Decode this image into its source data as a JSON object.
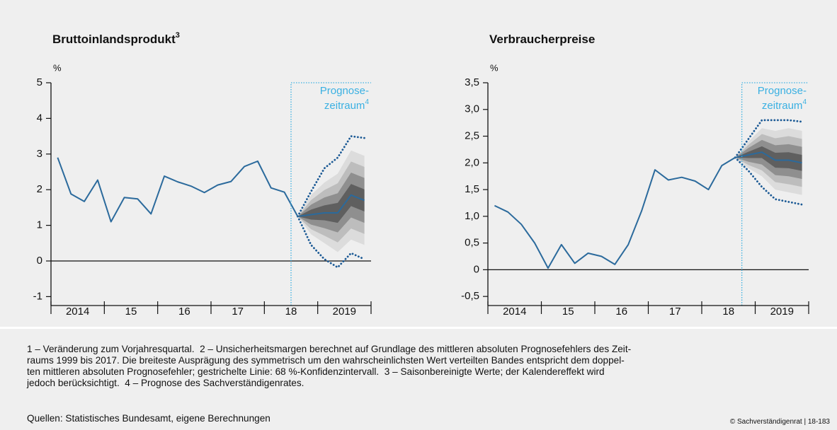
{
  "chart_data": [
    {
      "type": "line",
      "title": "Bruttoinlandsprodukt",
      "title_note": "3",
      "ylabel": "%",
      "xlim": [
        2014,
        2020
      ],
      "xticks": [
        2014,
        2015,
        2016,
        2017,
        2018,
        2019,
        2020
      ],
      "xlabels": [
        {
          "value": 2014.5,
          "label": "2014"
        },
        {
          "value": 2015.5,
          "label": "15"
        },
        {
          "value": 2016.5,
          "label": "16"
        },
        {
          "value": 2017.5,
          "label": "17"
        },
        {
          "value": 2018.5,
          "label": "18"
        },
        {
          "value": 2019.5,
          "label": "2019"
        }
      ],
      "ylim": [
        -1.25,
        5
      ],
      "yticks": [
        5,
        4,
        3,
        2,
        1,
        0,
        -1
      ],
      "x": [
        2014.125,
        2014.375,
        2014.625,
        2014.875,
        2015.125,
        2015.375,
        2015.625,
        2015.875,
        2016.125,
        2016.375,
        2016.625,
        2016.875,
        2017.125,
        2017.375,
        2017.625,
        2017.875,
        2018.125,
        2018.375,
        2018.625,
        2018.875,
        2019.125,
        2019.375,
        2019.625,
        2019.875
      ],
      "series": [
        {
          "color": "#2b6a9c",
          "values": [
            2.9,
            1.88,
            1.67,
            2.27,
            1.1,
            1.78,
            1.74,
            1.32,
            2.38,
            2.22,
            2.1,
            1.92,
            2.13,
            2.23,
            2.65,
            2.8,
            2.05,
            1.93,
            1.25,
            1.3,
            1.35,
            1.35,
            1.85,
            1.7
          ]
        }
      ],
      "fan": {
        "x": [
          2018.625,
          2018.875,
          2019.125,
          2019.375,
          2019.625,
          2019.875
        ],
        "bands": [
          {
            "color": "#dcdcdc",
            "lower": [
              1.25,
              0.75,
              0.5,
              0.25,
              0.6,
              0.45
            ],
            "upper": [
              1.25,
              1.85,
              2.2,
              2.45,
              3.1,
              2.95
            ]
          },
          {
            "color": "#bdbdbd",
            "lower": [
              1.25,
              0.89,
              0.71,
              0.52,
              0.91,
              0.76
            ],
            "upper": [
              1.25,
              1.71,
              1.99,
              2.18,
              2.79,
              2.64
            ]
          },
          {
            "color": "#8f8f8f",
            "lower": [
              1.25,
              1.02,
              0.92,
              0.8,
              1.22,
              1.07
            ],
            "upper": [
              1.25,
              1.58,
              1.78,
              1.9,
              2.48,
              2.33
            ]
          },
          {
            "color": "#5f5f5f",
            "lower": [
              1.25,
              1.16,
              1.14,
              1.07,
              1.54,
              1.39
            ],
            "upper": [
              1.25,
              1.44,
              1.56,
              1.63,
              2.16,
              2.01
            ]
          }
        ],
        "interval": {
          "color": "#1c5a95",
          "lower": [
            1.25,
            0.45,
            0.05,
            -0.18,
            0.22,
            0.05
          ],
          "upper": [
            1.25,
            1.95,
            2.6,
            2.9,
            3.5,
            3.45
          ]
        }
      },
      "forecast_start": 2018.5,
      "forecast_label": [
        "Prognose-",
        "zeitraum"
      ],
      "forecast_note": "4",
      "forecast_color": "#3ab0e2"
    },
    {
      "type": "line",
      "title": "Verbraucherpreise",
      "ylabel": "%",
      "xlim": [
        2014,
        2020
      ],
      "xticks": [
        2014,
        2015,
        2016,
        2017,
        2018,
        2019,
        2020
      ],
      "xlabels": [
        {
          "value": 2014.5,
          "label": "2014"
        },
        {
          "value": 2015.5,
          "label": "15"
        },
        {
          "value": 2016.5,
          "label": "16"
        },
        {
          "value": 2017.5,
          "label": "17"
        },
        {
          "value": 2018.5,
          "label": "18"
        },
        {
          "value": 2019.5,
          "label": "2019"
        }
      ],
      "ylim": [
        -0.67,
        3.5
      ],
      "yticks": [
        {
          "value": 3.5,
          "label": "3,5"
        },
        {
          "value": 3,
          "label": "3,0"
        },
        {
          "value": 2.5,
          "label": "2,5"
        },
        {
          "value": 2,
          "label": "2,0"
        },
        {
          "value": 1.5,
          "label": "1,5"
        },
        {
          "value": 1,
          "label": "1,0"
        },
        {
          "value": 0.5,
          "label": "0,5"
        },
        0,
        {
          "value": -0.5,
          "label": "-0,5"
        }
      ],
      "x": [
        2014.125,
        2014.375,
        2014.625,
        2014.875,
        2015.125,
        2015.375,
        2015.625,
        2015.875,
        2016.125,
        2016.375,
        2016.625,
        2016.875,
        2017.125,
        2017.375,
        2017.625,
        2017.875,
        2018.125,
        2018.375,
        2018.625,
        2018.875,
        2019.125,
        2019.375,
        2019.625,
        2019.875
      ],
      "series": [
        {
          "color": "#2b6a9c",
          "values": [
            1.2,
            1.08,
            0.85,
            0.5,
            0.03,
            0.47,
            0.12,
            0.31,
            0.25,
            0.1,
            0.47,
            1.1,
            1.87,
            1.68,
            1.73,
            1.66,
            1.5,
            1.95,
            2.1,
            2.15,
            2.2,
            2.05,
            2.05,
            2.0
          ]
        }
      ],
      "fan": {
        "x": [
          2018.625,
          2018.875,
          2019.125,
          2019.375,
          2019.625,
          2019.875
        ],
        "bands": [
          {
            "color": "#dcdcdc",
            "lower": [
              2.1,
              1.9,
              1.75,
              1.5,
              1.45,
              1.4
            ],
            "upper": [
              2.1,
              2.4,
              2.65,
              2.6,
              2.65,
              2.6
            ]
          },
          {
            "color": "#bdbdbd",
            "lower": [
              2.1,
              1.96,
              1.86,
              1.64,
              1.6,
              1.55
            ],
            "upper": [
              2.1,
              2.34,
              2.54,
              2.46,
              2.5,
              2.45
            ]
          },
          {
            "color": "#8f8f8f",
            "lower": [
              2.1,
              2.02,
              1.97,
              1.77,
              1.75,
              1.7
            ],
            "upper": [
              2.1,
              2.28,
              2.43,
              2.33,
              2.35,
              2.3
            ]
          },
          {
            "color": "#5f5f5f",
            "lower": [
              2.1,
              2.09,
              2.09,
              1.91,
              1.9,
              1.85
            ],
            "upper": [
              2.1,
              2.21,
              2.31,
              2.19,
              2.2,
              2.15
            ]
          }
        ],
        "interval": {
          "color": "#1c5a95",
          "lower": [
            2.1,
            1.85,
            1.55,
            1.32,
            1.27,
            1.22
          ],
          "upper": [
            2.1,
            2.45,
            2.8,
            2.8,
            2.8,
            2.77
          ]
        }
      },
      "forecast_start": 2018.75,
      "forecast_label": [
        "Prognose-",
        "zeitraum"
      ],
      "forecast_note": "4",
      "forecast_color": "#3ab0e2"
    }
  ],
  "notes": {
    "lines": [
      "1 – Veränderung zum Vorjahresquartal.  2 – Unsicherheitsmargen berechnet auf Grundlage des mittleren absoluten Prognosefehlers des Zeit-",
      "raums 1999 bis 2017. Die breiteste Ausprägung des symmetrisch um den wahrscheinlichsten Wert verteilten Bandes entspricht dem doppel-",
      "ten mittleren absoluten Prognosefehler; gestrichelte Linie: 68 %-Konfidenzintervall.  3 – Saisonbereinigte Werte; der Kalendereffekt wird",
      "jedoch berücksichtigt.  4 – Prognose des Sachverständigenrates."
    ],
    "source": "Quellen: Statistisches Bundesamt, eigene Berechnungen",
    "copyright": "© Sachverständigenrat | 18-183"
  }
}
